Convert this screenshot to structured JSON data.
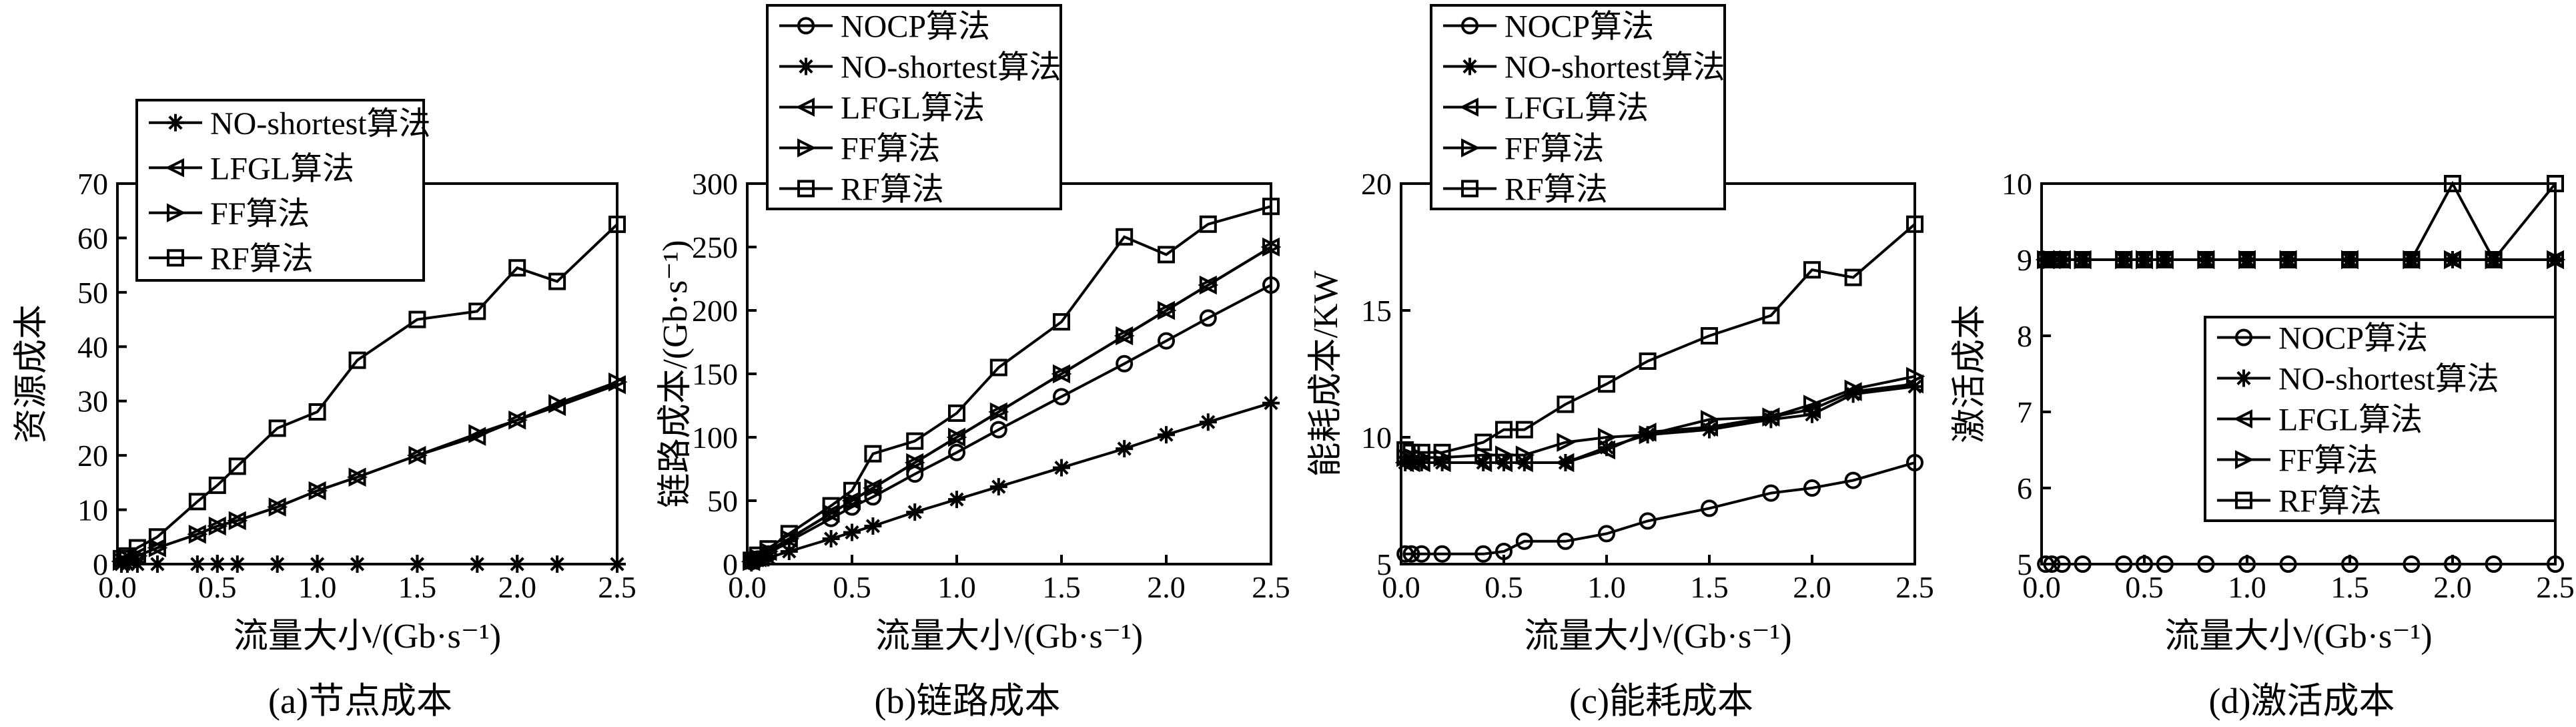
{
  "chart_data": [
    {
      "type": "line",
      "caption": "(a)节点成本",
      "xlabel": "流量大小/(Gb·s⁻¹)",
      "ylabel": "资源成本",
      "xlim": [
        0,
        2.5
      ],
      "ylim": [
        0,
        70
      ],
      "xticks": [
        "0.0",
        "0.5",
        "1.0",
        "1.5",
        "2.0",
        "2.5"
      ],
      "yticks": [
        "0",
        "10",
        "20",
        "30",
        "40",
        "50",
        "60",
        "70"
      ],
      "legend_position": "top-left",
      "x": [
        0.02,
        0.05,
        0.1,
        0.2,
        0.4,
        0.5,
        0.6,
        0.8,
        1.0,
        1.2,
        1.5,
        1.8,
        2.0,
        2.2,
        2.5
      ],
      "series": [
        {
          "name": "NO-shortest算法",
          "marker": "star",
          "values": [
            0,
            0,
            0,
            0,
            0,
            0,
            0,
            0,
            0,
            0,
            0,
            0,
            0,
            0,
            0
          ]
        },
        {
          "name": "LFGL算法",
          "marker": "triangle-left",
          "values": [
            0.5,
            1,
            1.5,
            3,
            5.5,
            7,
            8,
            10.5,
            13.5,
            16,
            20,
            23.5,
            26.5,
            29,
            33
          ]
        },
        {
          "name": "FF算法",
          "marker": "triangle-right",
          "values": [
            0.5,
            1,
            1.5,
            3,
            5.5,
            7,
            8,
            10.5,
            13.5,
            16,
            20,
            24,
            26.5,
            29.5,
            33.5
          ]
        },
        {
          "name": "RF算法",
          "marker": "square",
          "values": [
            1,
            1.5,
            3,
            5,
            11.5,
            14.5,
            18,
            25,
            28,
            37.5,
            45,
            46.5,
            54.5,
            52,
            62.5
          ]
        }
      ]
    },
    {
      "type": "line",
      "caption": "(b)链路成本",
      "xlabel": "流量大小/(Gb·s⁻¹)",
      "ylabel": "链路成本/(Gb·s⁻¹)",
      "xlim": [
        0,
        2.5
      ],
      "ylim": [
        0,
        300
      ],
      "xticks": [
        "0.0",
        "0.5",
        "1.0",
        "1.5",
        "2.0",
        "2.5"
      ],
      "yticks": [
        "0",
        "50",
        "100",
        "150",
        "200",
        "250",
        "300"
      ],
      "legend_position": "top-left",
      "x": [
        0.02,
        0.05,
        0.1,
        0.2,
        0.4,
        0.5,
        0.6,
        0.8,
        1.0,
        1.2,
        1.5,
        1.8,
        2.0,
        2.2,
        2.5
      ],
      "series": [
        {
          "name": "NOCP算法",
          "marker": "circle",
          "values": [
            2,
            4,
            8,
            18,
            36,
            45,
            53,
            71,
            88,
            106,
            132,
            158,
            176,
            194,
            220
          ]
        },
        {
          "name": "NO-shortest算法",
          "marker": "star",
          "values": [
            1,
            3,
            5,
            10,
            20,
            25,
            30,
            41,
            51,
            61,
            76,
            91,
            102,
            112,
            127
          ]
        },
        {
          "name": "LFGL算法",
          "marker": "triangle-left",
          "values": [
            2,
            5,
            10,
            20,
            40,
            50,
            60,
            80,
            100,
            120,
            150,
            180,
            200,
            220,
            250
          ]
        },
        {
          "name": "FF算法",
          "marker": "triangle-right",
          "values": [
            2,
            5,
            10,
            20,
            40,
            50,
            60,
            80,
            100,
            120,
            150,
            180,
            200,
            220,
            250
          ]
        },
        {
          "name": "RF算法",
          "marker": "square",
          "values": [
            3,
            7,
            12,
            24,
            46,
            58,
            87,
            97,
            119,
            155,
            191,
            258,
            244,
            268,
            282
          ]
        }
      ]
    },
    {
      "type": "line",
      "caption": "(c)能耗成本",
      "xlabel": "流量大小/(Gb·s⁻¹)",
      "ylabel": "能耗成本/KW",
      "xlim": [
        0,
        2.5
      ],
      "ylim": [
        5,
        20
      ],
      "xticks": [
        "0.0",
        "0.5",
        "1.0",
        "1.5",
        "2.0",
        "2.5"
      ],
      "yticks": [
        "5",
        "10",
        "15",
        "20"
      ],
      "legend_position": "top-left",
      "x": [
        0.02,
        0.05,
        0.1,
        0.2,
        0.4,
        0.5,
        0.6,
        0.8,
        1.0,
        1.2,
        1.5,
        1.8,
        2.0,
        2.2,
        2.5
      ],
      "series": [
        {
          "name": "NOCP算法",
          "marker": "circle",
          "values": [
            5.4,
            5.4,
            5.4,
            5.4,
            5.4,
            5.5,
            5.9,
            5.9,
            6.2,
            6.7,
            7.2,
            7.8,
            8.0,
            8.3,
            9.0
          ]
        },
        {
          "name": "NO-shortest算法",
          "marker": "star",
          "values": [
            9,
            9,
            9,
            9,
            9,
            9,
            9,
            9,
            9.6,
            10.1,
            10.3,
            10.7,
            10.9,
            11.7,
            12.0
          ]
        },
        {
          "name": "LFGL算法",
          "marker": "triangle-left",
          "values": [
            9,
            9,
            9,
            9,
            9,
            9,
            9,
            9,
            9.5,
            10.2,
            10.4,
            10.8,
            11.1,
            11.8,
            12.1
          ]
        },
        {
          "name": "FF算法",
          "marker": "triangle-right",
          "values": [
            9.2,
            9.2,
            9.2,
            9.2,
            9.3,
            9.3,
            9.3,
            9.8,
            10.0,
            10.1,
            10.7,
            10.8,
            11.3,
            11.9,
            12.4
          ]
        },
        {
          "name": "RF算法",
          "marker": "square",
          "values": [
            9.5,
            9.4,
            9.4,
            9.4,
            9.8,
            10.3,
            10.3,
            11.3,
            12.1,
            13.0,
            14.0,
            14.8,
            16.6,
            16.3,
            18.4
          ]
        }
      ]
    },
    {
      "type": "line",
      "caption": "(d)激活成本",
      "xlabel": "流量大小/(Gb·s⁻¹)",
      "ylabel": "激活成本",
      "xlim": [
        0,
        2.5
      ],
      "ylim": [
        5,
        10
      ],
      "xticks": [
        "0.0",
        "0.5",
        "1.0",
        "1.5",
        "2.0",
        "2.5"
      ],
      "yticks": [
        "5",
        "6",
        "7",
        "8",
        "9",
        "10"
      ],
      "legend_position": "center-right",
      "x": [
        0.02,
        0.05,
        0.1,
        0.2,
        0.4,
        0.5,
        0.6,
        0.8,
        1.0,
        1.2,
        1.5,
        1.8,
        2.0,
        2.2,
        2.5
      ],
      "series": [
        {
          "name": "NOCP算法",
          "marker": "circle",
          "values": [
            5,
            5,
            5,
            5,
            5,
            5,
            5,
            5,
            5,
            5,
            5,
            5,
            5,
            5,
            5
          ]
        },
        {
          "name": "NO-shortest算法",
          "marker": "star",
          "values": [
            9,
            9,
            9,
            9,
            9,
            9,
            9,
            9,
            9,
            9,
            9,
            9,
            9,
            9,
            9
          ]
        },
        {
          "name": "LFGL算法",
          "marker": "triangle-left",
          "values": [
            9,
            9,
            9,
            9,
            9,
            9,
            9,
            9,
            9,
            9,
            9,
            9,
            9,
            9,
            9
          ]
        },
        {
          "name": "FF算法",
          "marker": "triangle-right",
          "values": [
            9,
            9,
            9,
            9,
            9,
            9,
            9,
            9,
            9,
            9,
            9,
            9,
            9,
            9,
            9
          ]
        },
        {
          "name": "RF算法",
          "marker": "square",
          "values": [
            9,
            9,
            9,
            9,
            9,
            9,
            9,
            9,
            9,
            9,
            9,
            9,
            10,
            9,
            10
          ]
        }
      ]
    }
  ]
}
